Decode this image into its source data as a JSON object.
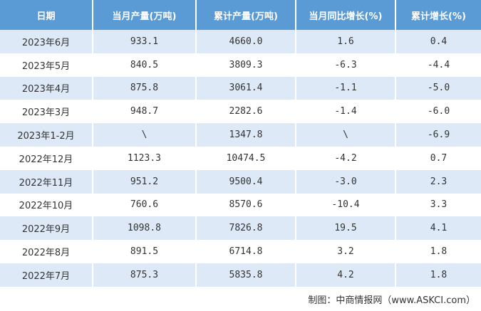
{
  "table": {
    "header": [
      "日期",
      "当月产量(万吨)",
      "累计产量(万吨)",
      "当月同比增长(%)",
      "累计增长(%)"
    ],
    "rows": [
      [
        "2023年6月",
        "933.1",
        "4660.0",
        "1.6",
        "0.4"
      ],
      [
        "2023年5月",
        "840.5",
        "3809.3",
        "-6.3",
        "-4.4"
      ],
      [
        "2023年4月",
        "875.8",
        "3061.4",
        "-1.1",
        "-5.0"
      ],
      [
        "2023年3月",
        "948.7",
        "2282.6",
        "-1.4",
        "-6.0"
      ],
      [
        "2023年1-2月",
        "\\",
        "1347.8",
        "\\",
        "-6.9"
      ],
      [
        "2022年12月",
        "1123.3",
        "10474.5",
        "-4.2",
        "0.7"
      ],
      [
        "2022年11月",
        "951.2",
        "9500.4",
        "-3.0",
        "2.3"
      ],
      [
        "2022年10月",
        "760.6",
        "8570.6",
        "-10.4",
        "3.3"
      ],
      [
        "2022年9月",
        "1098.8",
        "7826.8",
        "19.5",
        "4.1"
      ],
      [
        "2022年8月",
        "891.5",
        "6714.8",
        "3.2",
        "1.8"
      ],
      [
        "2022年7月",
        "875.3",
        "5835.8",
        "4.2",
        "1.8"
      ]
    ]
  },
  "source": "制图：中商情报网（www.ASKCI.com）"
}
